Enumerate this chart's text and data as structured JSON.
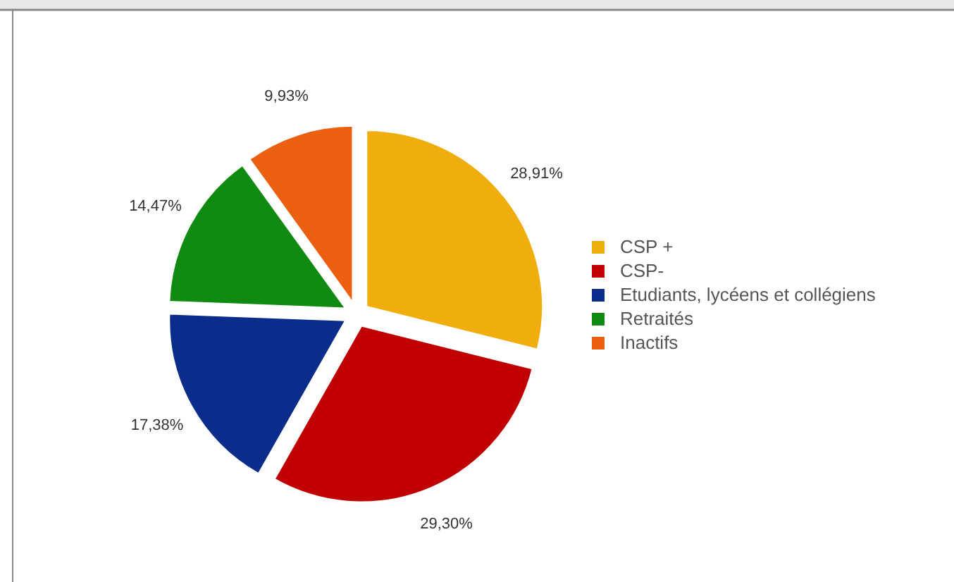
{
  "chart_data": {
    "type": "pie",
    "categories": [
      "CSP +",
      "CSP-",
      "Etudiants, lycéens et collégiens",
      "Retraités",
      "Inactifs"
    ],
    "values": [
      28.91,
      29.3,
      17.38,
      14.47,
      9.93
    ],
    "value_labels": [
      "28,91%",
      "29,30%",
      "17,38%",
      "14,47%",
      "9,93%"
    ],
    "colors": [
      "#f0ae0e",
      "#c00000",
      "#0a2c8a",
      "#108a10",
      "#ea6010"
    ],
    "legend": "right"
  }
}
